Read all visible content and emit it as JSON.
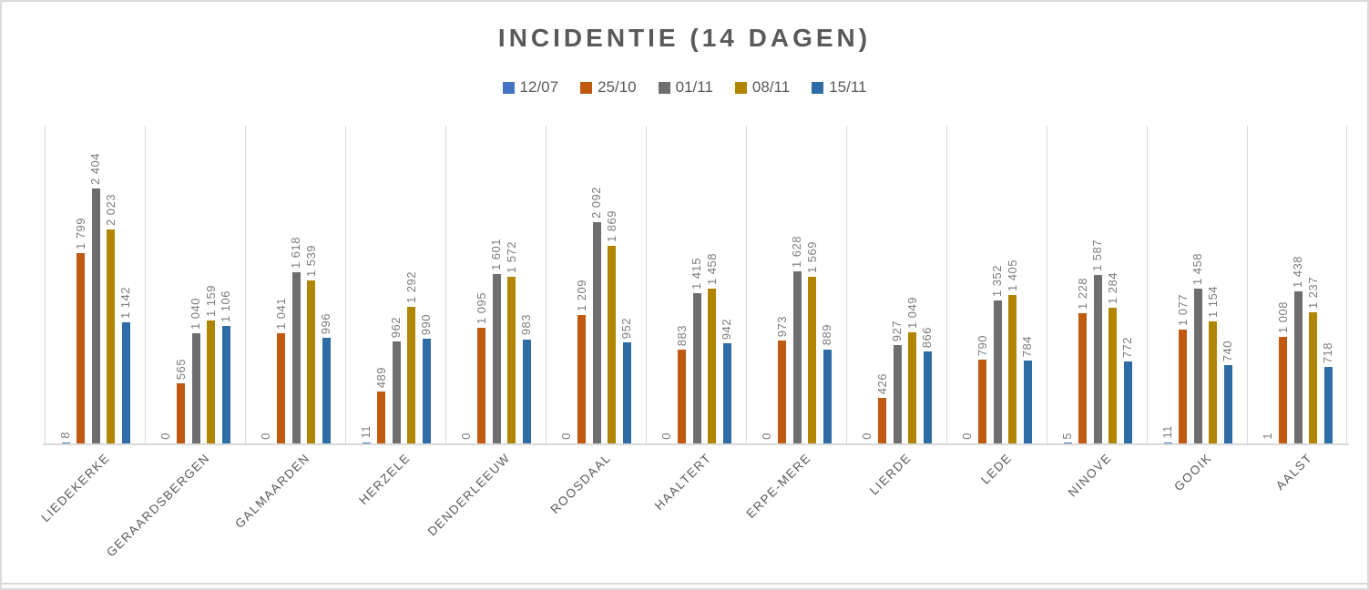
{
  "chart_data": {
    "type": "bar",
    "title": "INCIDENTIE (14 DAGEN)",
    "legend_position": "top",
    "grid": "vertical category separators only",
    "value_labels": "rotated 90deg above bars, space thousands separator",
    "ylim": [
      0,
      3000
    ],
    "categories": [
      "LIEDEKERKE",
      "GERAARDSBERGEN",
      "GALMAARDEN",
      "HERZELE",
      "DENDERLEEUW",
      "ROOSDAAL",
      "HAALTERT",
      "ERPE-MERE",
      "LIERDE",
      "LEDE",
      "NINOVE",
      "GOOIK",
      "AALST"
    ],
    "series": [
      {
        "name": "12/07",
        "color": "#4472C4",
        "values": [
          8,
          0,
          0,
          11,
          0,
          0,
          0,
          0,
          0,
          0,
          5,
          11,
          1
        ]
      },
      {
        "name": "25/10",
        "color": "#C05A11",
        "values": [
          1799,
          565,
          1041,
          489,
          1095,
          1209,
          883,
          973,
          426,
          790,
          1228,
          1077,
          1008
        ]
      },
      {
        "name": "01/11",
        "color": "#6E6E6E",
        "values": [
          2404,
          1040,
          1618,
          962,
          1601,
          2092,
          1415,
          1628,
          927,
          1352,
          1587,
          1458,
          1438
        ]
      },
      {
        "name": "08/11",
        "color": "#B18500",
        "values": [
          2023,
          1159,
          1539,
          1292,
          1572,
          1869,
          1458,
          1569,
          1049,
          1405,
          1284,
          1154,
          1237
        ]
      },
      {
        "name": "15/11",
        "color": "#2E6CA5",
        "values": [
          1142,
          1106,
          996,
          990,
          983,
          952,
          942,
          889,
          866,
          784,
          772,
          740,
          718
        ]
      }
    ]
  },
  "colors": {
    "title_text": "#595959",
    "value_label_text": "#7B7B7B",
    "category_label_text": "#595959",
    "gridline": "#D9D9D9",
    "page_border": "#DBDBDB"
  }
}
